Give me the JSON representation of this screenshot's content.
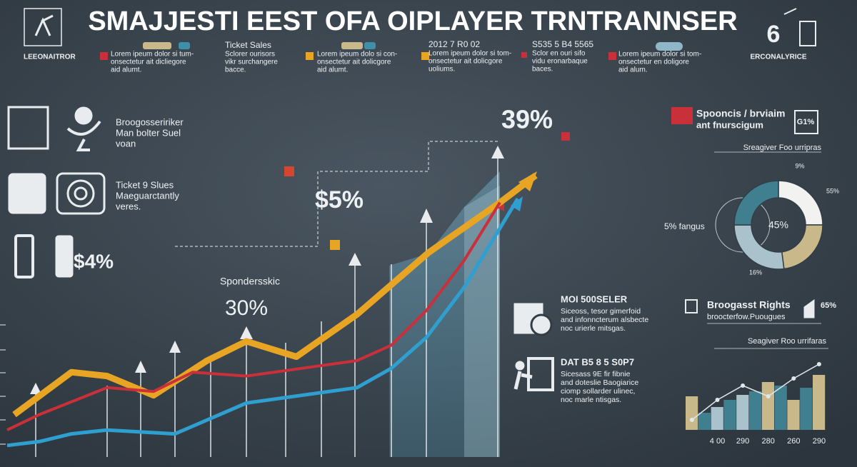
{
  "header": {
    "title": "SMAJJESTI EEST OFA OIPLAYER TRNTRANNSER",
    "left_label": "LEEONAITROR",
    "right_number": "6",
    "right_label": "ERCONALYRICE"
  },
  "top_items": [
    {
      "lines": [
        "Lorem ipeum dolor si tum-",
        "onsectetur ait dicliegore",
        "aid alumt."
      ]
    },
    {
      "heading": "Ticket Sales",
      "lines": [
        "Sclorer ourisors",
        "vikr surchangere",
        "bacce."
      ]
    },
    {
      "lines": [
        "Lorem ipeum dolo si con-",
        "onsectetur ait dolicgore",
        "aid alumt."
      ]
    },
    {
      "heading": "2012 7 R0 02",
      "lines": [
        "Lorem ipeum dolor si tom-",
        "onsectetur ait dolicgore",
        "uoliums."
      ]
    },
    {
      "heading": "S535 5 B4 5565",
      "lines": [
        "Sclor en ouri sifo",
        "vidu eronarbaque",
        "baces."
      ]
    },
    {
      "lines": [
        "Lorem ipeum dolor si tom-",
        "onsectetur en doligore",
        "aid alum."
      ]
    }
  ],
  "side_items": [
    {
      "lines": [
        "Broogosseririker",
        "Man bolter Suel",
        "voan"
      ]
    },
    {
      "lines": [
        "Ticket 9 Slues",
        "Maeguarctantly",
        "veres."
      ]
    },
    {
      "lines": [
        "$4%"
      ]
    }
  ],
  "mid_items": [
    {
      "heading": "MOI 500SELER",
      "lines": [
        "Siceoss, tesor gimerfoid",
        "and infonncterum alsbecte",
        "noc urierle mitsgas."
      ]
    },
    {
      "heading": "DAT B5 8 5 S0P7",
      "lines": [
        "Sicesass 9E fir fibnie",
        "and doteslie Baogiarice",
        "ciomp sollarder ulinec,",
        "noc marle ntisgas."
      ]
    }
  ],
  "right_items": [
    {
      "heading": "Spooncis / brviaim",
      "lines": [
        "ant fnurscigum"
      ],
      "badge": "G1%",
      "caption": "Sreagiver Foo urripras"
    },
    {
      "heading": "Broogasst Rights",
      "lines": [
        "broocterfow.Puougues"
      ],
      "badge": "65%",
      "caption": "Seagiver Roo urrifaras"
    }
  ],
  "chart_data": [
    {
      "type": "line",
      "xlim": [
        0,
        750
      ],
      "ylim": [
        0,
        100
      ],
      "series": [
        {
          "color": "#e8a423",
          "x": [
            10,
            90,
            140,
            205,
            280,
            335,
            405,
            490,
            590,
            690,
            740
          ],
          "values": [
            11,
            22,
            21,
            16,
            25,
            30,
            26,
            37,
            53,
            66,
            73
          ]
        },
        {
          "color": "#c9303a",
          "x": [
            0,
            45,
            140,
            205,
            260,
            335,
            490,
            538,
            587,
            640,
            690
          ],
          "values": [
            7,
            11,
            18,
            17,
            22,
            21,
            25,
            29,
            38,
            51,
            66
          ]
        },
        {
          "color": "#2f9fd0",
          "x": [
            0,
            45,
            90,
            140,
            235,
            335,
            490,
            538,
            587,
            640,
            715
          ],
          "values": [
            3,
            4,
            6,
            7,
            6,
            14,
            18,
            23,
            31,
            44,
            67
          ]
        }
      ],
      "annotations": [
        "Spondersskic",
        "30%",
        "$5%",
        "39%"
      ]
    },
    {
      "type": "pie",
      "values": [
        25,
        23,
        27,
        25
      ],
      "colors": [
        "#f2f2f0",
        "#c9b98a",
        "#a9c2cc",
        "#3f7f90"
      ],
      "annotations": [
        "9%",
        "55%",
        "16%",
        "45%",
        "5% fangus"
      ]
    },
    {
      "type": "bar",
      "categories": [
        null,
        null,
        "4 00",
        null,
        "290",
        null,
        "280",
        null,
        "260",
        null,
        "290"
      ],
      "values": [
        47,
        24,
        32,
        42,
        49,
        54,
        67,
        62,
        42,
        59,
        77
      ],
      "colors": [
        "#c9b98a",
        "#3f7f90",
        "#a9c2cc",
        "#3f7f90",
        "#a9c2cc",
        "#3f7f90",
        "#c9b98a",
        "#3f7f90",
        "#c9b98a",
        "#3f7f90",
        "#c9b98a"
      ],
      "ylim": [
        0,
        100
      ],
      "overlay": {
        "color": "#e0e6ea",
        "values": [
          14,
          null,
          42,
          null,
          62,
          null,
          47,
          null,
          72,
          null,
          92
        ]
      }
    }
  ]
}
